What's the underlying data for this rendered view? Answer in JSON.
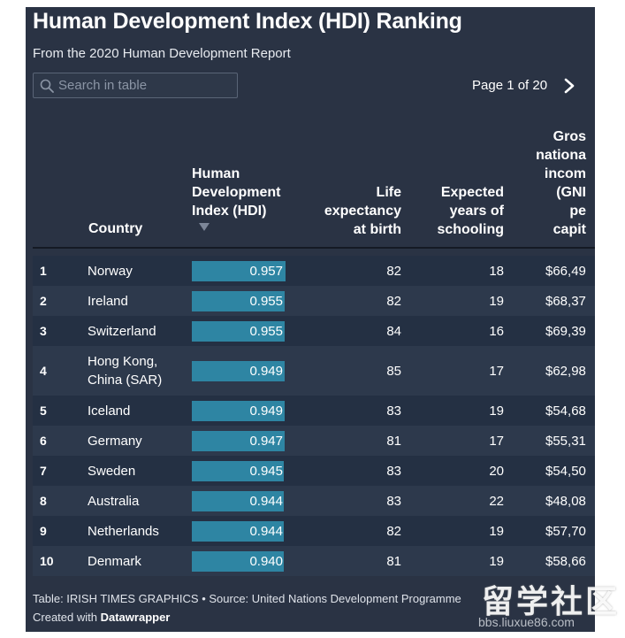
{
  "title": "Human Development Index (HDI) Ranking",
  "subtitle": "From the 2020 Human Development Report",
  "search": {
    "placeholder": "Search in table",
    "value": ""
  },
  "pagination": {
    "label": "Page 1 of 20"
  },
  "columns": {
    "country": "Country",
    "hdi_lines": [
      "Human",
      "Development",
      "Index (HDI)"
    ],
    "life_lines": [
      "Life",
      "expectancy",
      "at birth"
    ],
    "school_lines": [
      "Expected",
      "years of",
      "schooling"
    ],
    "gni_lines": [
      "Gros",
      "nationa",
      "incom",
      "(GNI",
      "pe",
      "capit"
    ]
  },
  "rows": [
    {
      "rank": "1",
      "country_lines": [
        "Norway"
      ],
      "hdi": 0.957,
      "hdi_label": "0.957",
      "life": "82",
      "schooling": "18",
      "gni": "$66,49"
    },
    {
      "rank": "2",
      "country_lines": [
        "Ireland"
      ],
      "hdi": 0.955,
      "hdi_label": "0.955",
      "life": "82",
      "schooling": "19",
      "gni": "$68,37"
    },
    {
      "rank": "3",
      "country_lines": [
        "Switzerland"
      ],
      "hdi": 0.955,
      "hdi_label": "0.955",
      "life": "84",
      "schooling": "16",
      "gni": "$69,39"
    },
    {
      "rank": "4",
      "country_lines": [
        "Hong Kong,",
        "China (SAR)"
      ],
      "hdi": 0.949,
      "hdi_label": "0.949",
      "life": "85",
      "schooling": "17",
      "gni": "$62,98"
    },
    {
      "rank": "5",
      "country_lines": [
        "Iceland"
      ],
      "hdi": 0.949,
      "hdi_label": "0.949",
      "life": "83",
      "schooling": "19",
      "gni": "$54,68"
    },
    {
      "rank": "6",
      "country_lines": [
        "Germany"
      ],
      "hdi": 0.947,
      "hdi_label": "0.947",
      "life": "81",
      "schooling": "17",
      "gni": "$55,31"
    },
    {
      "rank": "7",
      "country_lines": [
        "Sweden"
      ],
      "hdi": 0.945,
      "hdi_label": "0.945",
      "life": "83",
      "schooling": "20",
      "gni": "$54,50"
    },
    {
      "rank": "8",
      "country_lines": [
        "Australia"
      ],
      "hdi": 0.944,
      "hdi_label": "0.944",
      "life": "83",
      "schooling": "22",
      "gni": "$48,08"
    },
    {
      "rank": "9",
      "country_lines": [
        "Netherlands"
      ],
      "hdi": 0.944,
      "hdi_label": "0.944",
      "life": "82",
      "schooling": "19",
      "gni": "$57,70"
    },
    {
      "rank": "10",
      "country_lines": [
        "Denmark"
      ],
      "hdi": 0.94,
      "hdi_label": "0.940",
      "life": "81",
      "schooling": "19",
      "gni": "$58,66"
    }
  ],
  "footer": {
    "source": "Table: IRISH TIMES GRAPHICS • Source: United Nations Development Programme",
    "created_prefix": "Created with",
    "created_brand": "Datawrapper"
  },
  "watermark": {
    "logo_text": "留学社区",
    "url": "bbs.liuxue86.com"
  },
  "colors": {
    "panel_bg": "#2a3344",
    "bar": "#2e85a3",
    "row_odd": "#243043",
    "row_even": "#2d394c"
  }
}
